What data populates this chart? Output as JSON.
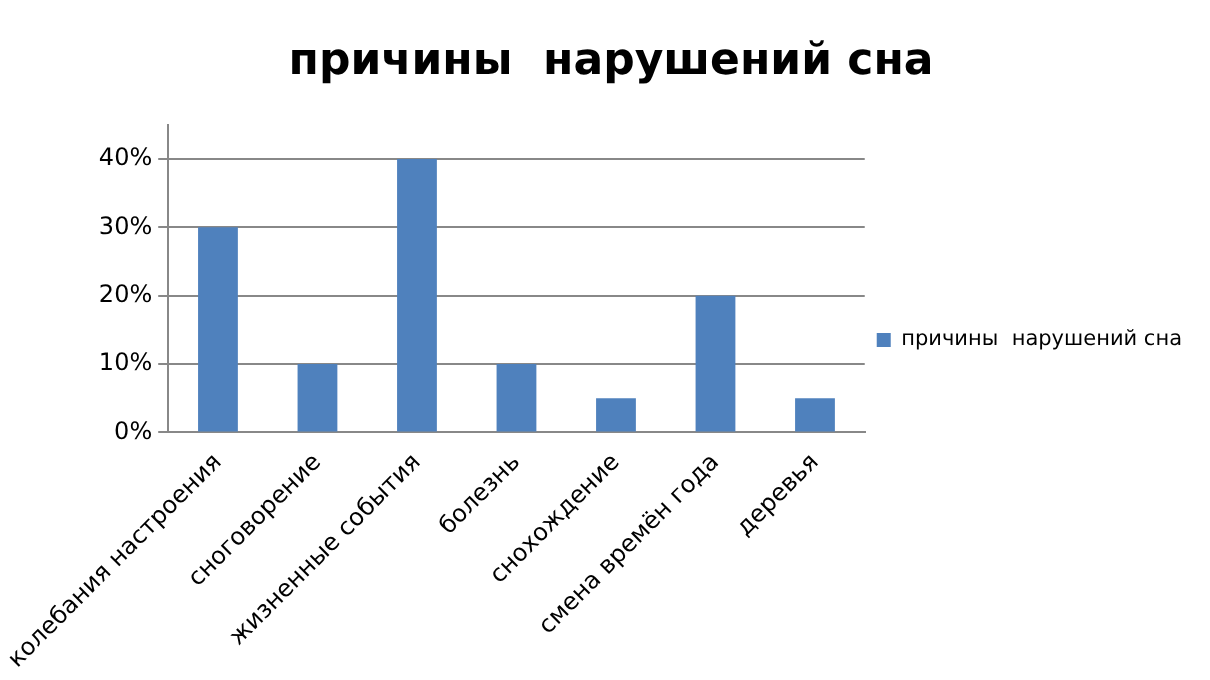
{
  "chart_data": {
    "type": "bar",
    "title": "причины  нарушений сна",
    "categories": [
      "колебания настроения",
      "сноговорение",
      "жизненные события",
      "болезнь",
      "снохождение",
      "смена времён года",
      "деревья"
    ],
    "series": [
      {
        "name": "причины  нарушений сна",
        "color": "#4f81bd",
        "values": [
          30,
          10,
          40,
          10,
          5,
          20,
          5
        ]
      }
    ],
    "ylim": [
      0,
      45
    ],
    "yticks": [
      {
        "value": 0,
        "label": "0%"
      },
      {
        "value": 10,
        "label": "10%"
      },
      {
        "value": 20,
        "label": "20%"
      },
      {
        "value": 30,
        "label": "30%"
      },
      {
        "value": 40,
        "label": "40%"
      }
    ],
    "grid": "y",
    "legend": "right"
  }
}
